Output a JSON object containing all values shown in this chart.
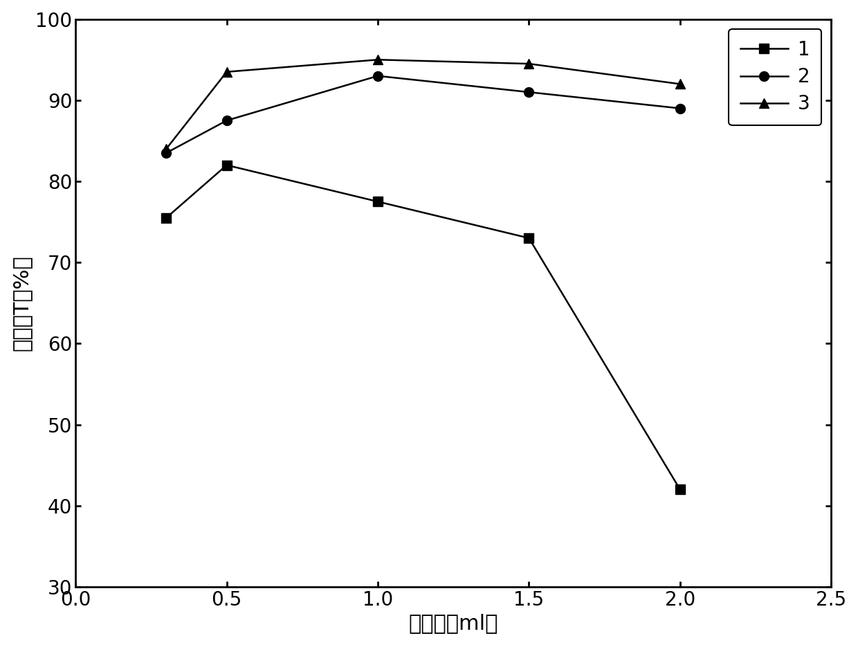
{
  "series": [
    {
      "label": "1",
      "x": [
        0.3,
        0.5,
        1.0,
        1.5,
        2.0
      ],
      "y": [
        75.5,
        82.0,
        77.5,
        73.0,
        42.0
      ],
      "marker": "s",
      "color": "#000000",
      "linestyle": "-"
    },
    {
      "label": "2",
      "x": [
        0.3,
        0.5,
        1.0,
        1.5,
        2.0
      ],
      "y": [
        83.5,
        87.5,
        93.0,
        91.0,
        89.0
      ],
      "marker": "o",
      "color": "#000000",
      "linestyle": "-"
    },
    {
      "label": "3",
      "x": [
        0.3,
        0.5,
        1.0,
        1.5,
        2.0
      ],
      "y": [
        84.0,
        93.5,
        95.0,
        94.5,
        92.0
      ],
      "marker": "^",
      "color": "#000000",
      "linestyle": "-"
    }
  ],
  "xlabel": "加入量（ml）",
  "ylabel": "透过率T（%）",
  "xlim": [
    0.0,
    2.5
  ],
  "ylim": [
    30,
    100
  ],
  "xticks": [
    0.0,
    0.5,
    1.0,
    1.5,
    2.0,
    2.5
  ],
  "yticks": [
    30,
    40,
    50,
    60,
    70,
    80,
    90,
    100
  ],
  "background_color": "#ffffff",
  "grid": false,
  "legend_loc": "upper right",
  "marker_size": 10,
  "linewidth": 1.8,
  "label_fontsize": 22,
  "tick_fontsize": 20,
  "legend_fontsize": 20
}
